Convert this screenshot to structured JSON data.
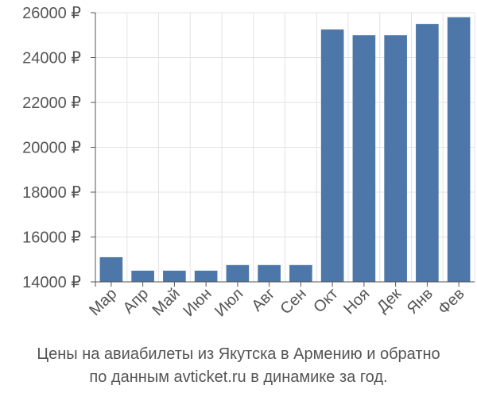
{
  "chart_data": {
    "type": "bar",
    "categories": [
      "Мар",
      "Апр",
      "Май",
      "Июн",
      "Июл",
      "Авг",
      "Сен",
      "Окт",
      "Ноя",
      "Дек",
      "Янв",
      "Фев"
    ],
    "values": [
      15100,
      14500,
      14500,
      14500,
      14750,
      14750,
      14750,
      25250,
      25000,
      25000,
      25500,
      25800
    ],
    "ylim": [
      14000,
      26000
    ],
    "yticks": [
      14000,
      16000,
      18000,
      20000,
      22000,
      24000,
      26000
    ],
    "ytick_labels": [
      "14000 ₽",
      "16000 ₽",
      "18000 ₽",
      "20000 ₽",
      "22000 ₽",
      "24000 ₽",
      "26000 ₽"
    ],
    "bar_color": "#4c77a8",
    "grid": true,
    "caption_line1": "Цены на авиабилеты из Якутска в Армению и обратно",
    "caption_line2": "по данным avticket.ru в динамике за год."
  }
}
